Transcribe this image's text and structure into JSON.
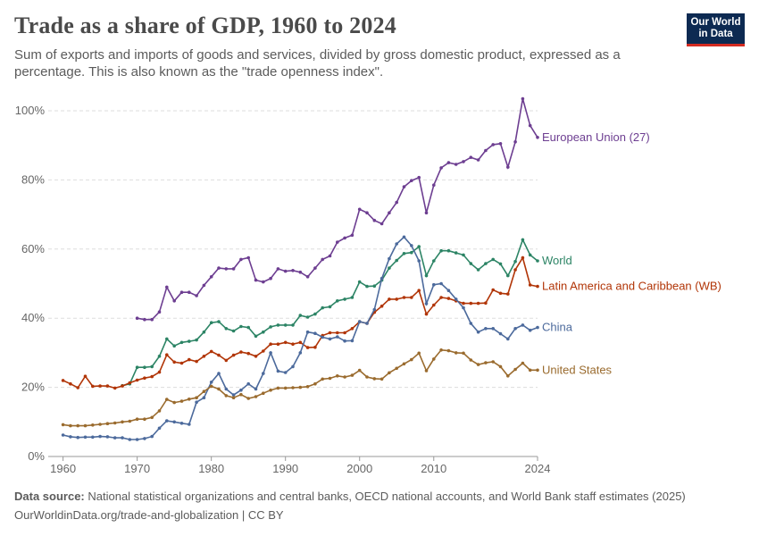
{
  "header": {
    "title": "Trade as a share of GDP, 1960 to 2024",
    "subtitle": "Sum of exports and imports of goods and services, divided by gross domestic product, expressed as a percentage. This is also known as the \"trade openness index\"."
  },
  "logo": {
    "line1": "Our World",
    "line2": "in Data",
    "bg": "#0d2a52",
    "accent": "#d42b21"
  },
  "footer": {
    "source_label": "Data source:",
    "source_text": "National statistical organizations and central banks, OECD national accounts, and World Bank staff estimates (2025)",
    "license_text": "OurWorldinData.org/trade-and-globalization | CC BY"
  },
  "chart_data": {
    "type": "line",
    "title": "Trade as a share of GDP, 1960 to 2024",
    "xlabel": "",
    "ylabel": "",
    "xlim": [
      1958,
      2024
    ],
    "ylim": [
      0,
      105
    ],
    "x_ticks": [
      1960,
      1970,
      1980,
      1990,
      2000,
      2010,
      2024
    ],
    "y_ticks": [
      {
        "value": 0,
        "label": "0%"
      },
      {
        "value": 20,
        "label": "20%"
      },
      {
        "value": 40,
        "label": "40%"
      },
      {
        "value": 60,
        "label": "60%"
      },
      {
        "value": 80,
        "label": "80%"
      },
      {
        "value": 100,
        "label": "100%"
      }
    ],
    "grid": "horizontal dashed",
    "legend": "labels at line ends (right)",
    "series": [
      {
        "name": "European Union (27)",
        "color": "#6d3e91",
        "start": 1970,
        "values": [
          40,
          39.6,
          39.6,
          41.8,
          49,
          45,
          47.5,
          47.5,
          46.5,
          49.5,
          52,
          54.5,
          54.3,
          54.3,
          57,
          57.5,
          51,
          50.5,
          51.5,
          54.3,
          53.6,
          53.8,
          53.3,
          52,
          54.5,
          57,
          58,
          62,
          63.2,
          64,
          71.5,
          70.5,
          68.3,
          67.3,
          70.5,
          73.5,
          78,
          79.8,
          80.7,
          70.5,
          78.5,
          83.5,
          85,
          84.5,
          85.3,
          86.5,
          85.8,
          88.5,
          90.2,
          90.5,
          83.7,
          91,
          103.5,
          95.7,
          92.3
        ]
      },
      {
        "name": "World",
        "color": "#2c8465",
        "start": 1968,
        "values": [
          20.5,
          21,
          25.8,
          25.8,
          26,
          29,
          34,
          32,
          33,
          33.3,
          33.7,
          36,
          38.7,
          39,
          37,
          36.3,
          37.6,
          37.3,
          34.8,
          36,
          37.5,
          38,
          38,
          38,
          40.8,
          40.3,
          41.2,
          43,
          43.3,
          45,
          45.5,
          46,
          50.5,
          49.2,
          49.3,
          51,
          54.5,
          56.7,
          58.7,
          59,
          60.7,
          52.3,
          56.6,
          59.5,
          59.5,
          58.9,
          58.3,
          55.8,
          54,
          55.8,
          57,
          55.7,
          52.3,
          56.4,
          62.7,
          58.3,
          56.6
        ]
      },
      {
        "name": "Latin America and Caribbean (WB)",
        "color": "#b13507",
        "start": 1960,
        "values": [
          22,
          21,
          19.9,
          23.2,
          20.3,
          20.4,
          20.4,
          19.8,
          20.4,
          21.3,
          22.1,
          22.7,
          23.1,
          24.4,
          29.4,
          27.3,
          27,
          28,
          27.5,
          29,
          30.4,
          29.3,
          27.8,
          29.3,
          30.2,
          29.8,
          29,
          30.5,
          32.5,
          32.5,
          33,
          32.5,
          33,
          31.5,
          31.6,
          35,
          35.8,
          35.8,
          35.8,
          37,
          39,
          38.5,
          41.7,
          43.5,
          45.5,
          45.5,
          46,
          46,
          48,
          41.2,
          43.8,
          46,
          45.7,
          45,
          44.3,
          44.3,
          44.3,
          44.4,
          48.2,
          47.2,
          47,
          54,
          57.5,
          49.6,
          49.2
        ]
      },
      {
        "name": "China",
        "color": "#4c6a9c",
        "start": 1960,
        "values": [
          6.2,
          5.7,
          5.5,
          5.6,
          5.6,
          5.8,
          5.7,
          5.4,
          5.4,
          4.9,
          4.9,
          5.2,
          5.8,
          8.2,
          10.3,
          10,
          9.6,
          9.3,
          15.7,
          17,
          21.5,
          24,
          19.5,
          17.8,
          19.2,
          21,
          19.5,
          24,
          30,
          24.7,
          24.3,
          26,
          30,
          36,
          35.6,
          34.5,
          34,
          34.6,
          33.4,
          33.5,
          39,
          38.5,
          42.5,
          51.5,
          57.2,
          61.5,
          63.5,
          61,
          56.6,
          44.2,
          49.7,
          50,
          48,
          45.5,
          43,
          38.5,
          36,
          37,
          37,
          35.5,
          34,
          37,
          38,
          36.5,
          37.3
        ]
      },
      {
        "name": "United States",
        "color": "#9a6b2e",
        "start": 1960,
        "values": [
          9.2,
          8.9,
          8.9,
          8.9,
          9.1,
          9.3,
          9.5,
          9.7,
          10,
          10.2,
          10.8,
          10.8,
          11.3,
          13.2,
          16.5,
          15.6,
          16,
          16.6,
          17,
          18.8,
          20.3,
          19.5,
          17.6,
          17,
          17.9,
          16.8,
          17.3,
          18.3,
          19.2,
          19.8,
          19.8,
          19.9,
          20,
          20.2,
          21,
          22.4,
          22.6,
          23.3,
          23,
          23.5,
          24.9,
          23,
          22.5,
          22.4,
          24.2,
          25.5,
          26.8,
          28,
          29.9,
          24.8,
          28.2,
          30.8,
          30.6,
          30,
          29.9,
          27.9,
          26.6,
          27.1,
          27.4,
          26,
          23.3,
          25.2,
          27,
          25,
          25
        ]
      }
    ]
  }
}
